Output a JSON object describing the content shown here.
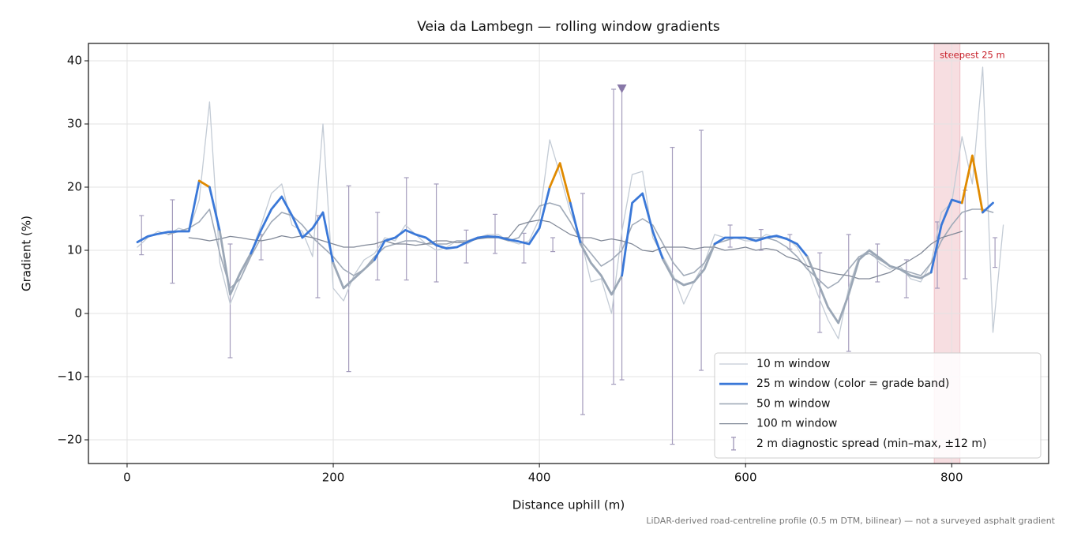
{
  "chart_data": {
    "type": "line",
    "title": "Veia da Lambegn — rolling window gradients",
    "x_label": "Distance uphill (m)",
    "y_label": "Gradient (%)",
    "footnote": "LiDAR-derived road-centreline profile (0.5 m DTM, bilinear) — not a surveyed asphalt gradient",
    "xlim": [
      -37.5,
      894
    ],
    "ylim": [
      -23.75,
      42.75
    ],
    "xticks": [
      0,
      200,
      400,
      600,
      800
    ],
    "yticks": [
      {
        "value": -20,
        "label": "−20"
      },
      {
        "value": -10,
        "label": "−10"
      },
      0,
      10,
      20,
      30,
      40
    ],
    "grid": true,
    "legend": "lower right",
    "x": [
      0,
      10,
      20,
      30,
      40,
      50,
      60,
      70,
      80,
      90,
      100,
      110,
      120,
      130,
      140,
      150,
      160,
      170,
      180,
      190,
      200,
      210,
      220,
      230,
      240,
      250,
      260,
      270,
      280,
      290,
      300,
      310,
      320,
      330,
      340,
      350,
      360,
      370,
      380,
      390,
      400,
      410,
      420,
      430,
      440,
      450,
      460,
      470,
      480,
      490,
      500,
      510,
      520,
      530,
      540,
      550,
      560,
      570,
      580,
      590,
      600,
      610,
      620,
      630,
      640,
      650,
      660,
      670,
      680,
      690,
      700,
      710,
      720,
      730,
      740,
      750,
      760,
      770,
      780,
      790,
      800,
      810,
      820,
      830,
      840,
      850
    ],
    "series": [
      {
        "name": "10 m window",
        "color": "#c3cbd5",
        "width": 1.3,
        "values": [
          null,
          10.5,
          12.0,
          13.0,
          12.5,
          13.5,
          13.0,
          18.0,
          33.5,
          8.0,
          1.5,
          5.5,
          9.5,
          14.0,
          19.0,
          20.5,
          14.0,
          13.0,
          9.0,
          30.0,
          4.0,
          2.0,
          6.0,
          8.5,
          9.5,
          12.0,
          11.5,
          14.0,
          12.5,
          11.0,
          10.0,
          10.5,
          11.5,
          11.0,
          12.0,
          12.5,
          12.5,
          11.5,
          11.0,
          11.5,
          15.0,
          27.5,
          22.0,
          16.0,
          12.0,
          5.0,
          5.5,
          0.0,
          13.0,
          22.0,
          22.5,
          12.0,
          9.0,
          6.0,
          1.5,
          5.0,
          8.0,
          12.5,
          12.0,
          12.0,
          11.5,
          11.5,
          12.5,
          12.0,
          12.0,
          10.5,
          7.5,
          3.0,
          -1.0,
          -4.0,
          4.0,
          9.0,
          10.0,
          8.0,
          7.0,
          7.5,
          5.5,
          5.0,
          8.0,
          16.0,
          17.5,
          28.0,
          20.5,
          39.0,
          -3.0,
          14.0
        ]
      },
      {
        "name": "25 m window (color = grade band)",
        "color": "#3a78d8",
        "width": 2.8,
        "band_edges": [
          10,
          20,
          25
        ],
        "band_colors": [
          "#9ba7b6",
          "#3a78d8",
          "#e08a00",
          "#c8202a"
        ],
        "values": [
          null,
          11.3,
          12.2,
          12.6,
          12.9,
          13.0,
          13.0,
          21.0,
          20.0,
          13.0,
          3.0,
          6.5,
          9.5,
          13.2,
          16.5,
          18.5,
          15.5,
          12.0,
          13.5,
          16.0,
          8.0,
          4.0,
          5.5,
          7.0,
          8.5,
          11.5,
          12.0,
          13.2,
          12.5,
          12.0,
          10.8,
          10.3,
          10.5,
          11.3,
          12.0,
          12.2,
          12.1,
          11.7,
          11.4,
          11.0,
          13.5,
          20.0,
          23.8,
          17.5,
          11.0,
          8.0,
          6.0,
          3.0,
          6.0,
          17.5,
          19.0,
          13.0,
          8.5,
          5.5,
          4.5,
          5.0,
          7.0,
          11.0,
          12.0,
          12.0,
          12.0,
          11.5,
          12.0,
          12.3,
          11.8,
          11.0,
          9.0,
          5.0,
          1.0,
          -1.5,
          3.0,
          8.5,
          10.0,
          8.8,
          7.5,
          7.0,
          6.0,
          5.6,
          6.5,
          14.0,
          18.0,
          17.5,
          25.0,
          16.0,
          17.5,
          null
        ]
      },
      {
        "name": "50 m window",
        "color": "#a0aab8",
        "width": 1.6,
        "values": [
          null,
          null,
          null,
          null,
          12.5,
          13.0,
          13.5,
          14.5,
          16.5,
          9.5,
          4.0,
          5.5,
          9.0,
          12.0,
          14.5,
          16.0,
          15.5,
          14.0,
          12.0,
          10.5,
          9.0,
          7.0,
          6.0,
          7.0,
          9.0,
          10.5,
          11.0,
          11.5,
          11.5,
          11.0,
          11.0,
          11.0,
          11.5,
          11.5,
          12.0,
          12.0,
          12.0,
          11.5,
          12.0,
          14.5,
          17.0,
          17.5,
          17.0,
          14.5,
          11.5,
          9.5,
          7.5,
          8.5,
          10.0,
          14.0,
          15.0,
          14.0,
          11.0,
          8.0,
          6.0,
          6.5,
          8.0,
          11.0,
          11.5,
          12.0,
          12.0,
          12.0,
          12.0,
          11.5,
          10.5,
          9.0,
          7.0,
          5.5,
          4.0,
          5.0,
          7.0,
          9.0,
          9.5,
          8.5,
          7.5,
          7.0,
          6.5,
          6.0,
          8.0,
          11.5,
          14.0,
          16.0,
          16.5,
          16.5,
          16.0,
          null
        ]
      },
      {
        "name": "100 m window",
        "color": "#808897",
        "width": 1.3,
        "values": [
          null,
          null,
          null,
          null,
          null,
          null,
          12.0,
          11.8,
          11.5,
          11.8,
          12.2,
          12.0,
          11.7,
          11.5,
          11.8,
          12.3,
          12.0,
          12.3,
          12.0,
          11.5,
          11.0,
          10.5,
          10.5,
          10.8,
          11.0,
          11.5,
          11.0,
          11.0,
          10.8,
          11.0,
          11.5,
          11.5,
          11.2,
          11.3,
          11.8,
          12.0,
          12.0,
          12.0,
          14.0,
          14.5,
          14.8,
          14.5,
          13.5,
          12.5,
          12.0,
          12.0,
          11.5,
          11.8,
          11.5,
          11.0,
          10.0,
          9.8,
          10.5,
          10.5,
          10.5,
          10.2,
          10.5,
          10.5,
          10.0,
          10.2,
          10.5,
          10.0,
          10.3,
          10.0,
          9.0,
          8.5,
          7.5,
          7.0,
          6.5,
          6.2,
          6.0,
          5.5,
          5.5,
          6.0,
          6.5,
          7.5,
          8.5,
          9.5,
          11.0,
          12.0,
          12.5,
          13.0,
          null,
          null,
          null,
          null
        ]
      }
    ],
    "spread": {
      "name": "2 m diagnostic spread (min–max, ±12 m)",
      "color": "#a49cbc",
      "x": [
        14,
        44,
        100,
        130,
        185,
        215,
        243,
        271,
        300,
        329,
        357,
        385,
        413,
        442,
        472,
        480,
        529,
        557,
        585,
        615,
        643,
        672,
        700,
        728,
        756,
        786,
        813,
        842
      ],
      "low": [
        9.3,
        4.8,
        -7.0,
        8.5,
        2.5,
        -9.2,
        5.3,
        5.3,
        5.0,
        8.0,
        9.5,
        8.0,
        9.8,
        -16.0,
        -11.2,
        -10.5,
        -20.7,
        -9.0,
        10.5,
        10.0,
        10.2,
        -3.0,
        -6.0,
        5.0,
        2.5,
        4.0,
        5.5,
        7.3
      ],
      "high": [
        15.5,
        18.0,
        11.0,
        12.5,
        15.5,
        20.2,
        16.0,
        21.5,
        20.5,
        13.2,
        15.7,
        12.7,
        12.0,
        19.0,
        35.5,
        35.5,
        26.3,
        29.0,
        14.0,
        13.3,
        12.5,
        9.6,
        12.5,
        11.0,
        8.5,
        14.5,
        19.5,
        12.0
      ]
    },
    "max_marker": {
      "x": 480,
      "y": 35.5,
      "color": "#8878a8"
    },
    "highlight": {
      "x0": 783,
      "x1": 808,
      "label": "steepest 25 m",
      "color": "#e8a0a8",
      "label_color": "#c8202a"
    }
  }
}
